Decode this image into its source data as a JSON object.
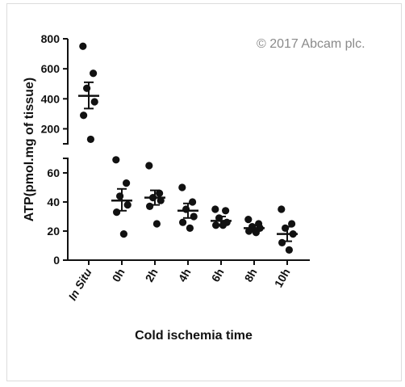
{
  "watermark": "© 2017 Abcam plc.",
  "chart_data": {
    "type": "scatter",
    "xlabel": "Cold ischemia time",
    "ylabel": "ATP(pmol.mg of tissue)",
    "categories": [
      "In Situ",
      "0h",
      "2h",
      "4h",
      "6h",
      "8h",
      "10h"
    ],
    "axis_break": true,
    "y_upper": {
      "ylim": [
        100,
        800
      ],
      "ticks": [
        200,
        400,
        600,
        800
      ]
    },
    "y_lower": {
      "ylim": [
        0,
        70
      ],
      "ticks": [
        0,
        20,
        40,
        60
      ]
    },
    "groups": [
      {
        "category": "In Situ",
        "points": [
          750,
          570,
          470,
          380,
          290,
          130
        ],
        "mean": 420,
        "sem_low": 335,
        "sem_high": 510
      },
      {
        "category": "0h",
        "points": [
          69,
          53,
          44,
          38,
          33,
          18
        ],
        "mean": 41,
        "sem_low": 34,
        "sem_high": 49
      },
      {
        "category": "2h",
        "points": [
          65,
          46,
          43,
          41,
          37,
          25
        ],
        "mean": 43,
        "sem_low": 38,
        "sem_high": 48
      },
      {
        "category": "4h",
        "points": [
          50,
          40,
          35,
          30,
          26,
          22
        ],
        "mean": 34,
        "sem_low": 29,
        "sem_high": 39
      },
      {
        "category": "6h",
        "points": [
          35,
          34,
          29,
          26,
          24,
          24
        ],
        "mean": 27,
        "sem_low": 24,
        "sem_high": 30
      },
      {
        "category": "8h",
        "points": [
          28,
          25,
          23,
          22,
          20,
          19
        ],
        "mean": 22,
        "sem_low": 20,
        "sem_high": 24
      },
      {
        "category": "10h",
        "points": [
          35,
          25,
          22,
          18,
          12,
          7
        ],
        "mean": 18,
        "sem_low": 13,
        "sem_high": 23
      }
    ]
  }
}
